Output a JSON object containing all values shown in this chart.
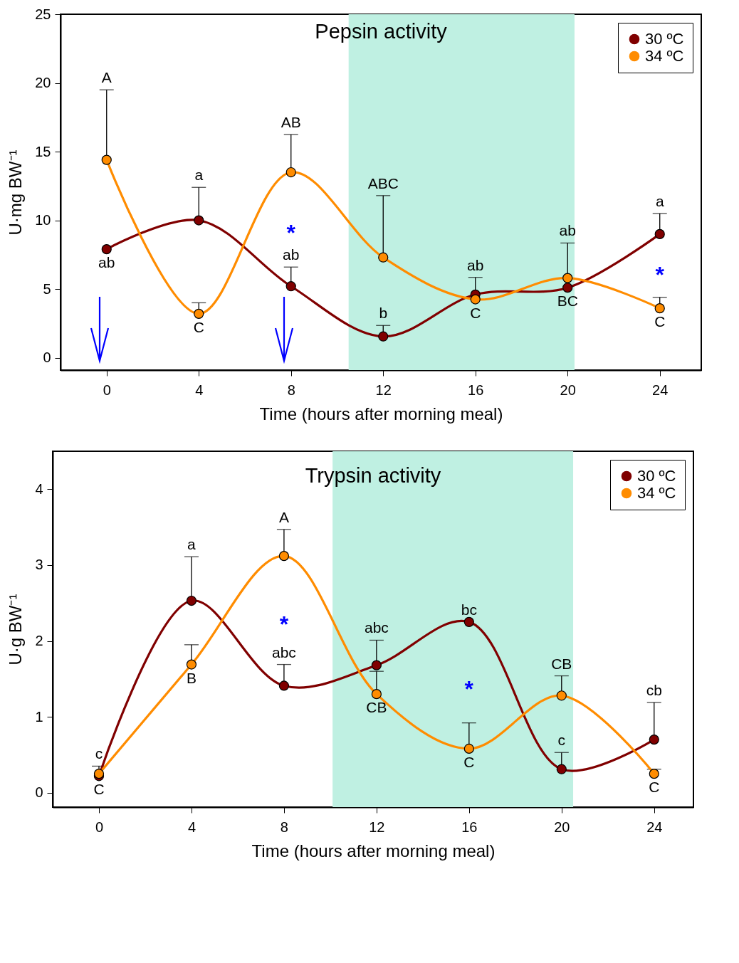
{
  "chart_data": [
    {
      "type": "line",
      "title": "Pepsin activity",
      "xlabel": "Time (hours after morning meal)",
      "ylabel": "U·mg BW⁻¹",
      "x": [
        0,
        4,
        8,
        12,
        16,
        20,
        24
      ],
      "xlim": [
        -2,
        25.8
      ],
      "xticks": [
        0,
        4,
        8,
        12,
        16,
        20,
        24
      ],
      "ylim": [
        -0.9,
        25
      ],
      "yticks": [
        0,
        5,
        10,
        15,
        20,
        25
      ],
      "grid": false,
      "legend": "top right",
      "marker": "circle",
      "line_style": "solid",
      "series": [
        {
          "name": "30 ºC",
          "color": "#800000",
          "values": [
            7.9,
            10.0,
            5.2,
            1.55,
            4.6,
            5.1,
            9.0
          ],
          "errors": [
            null,
            [
              10.0,
              12.4
            ],
            [
              5.2,
              6.6
            ],
            [
              1.55,
              2.35
            ],
            [
              4.6,
              5.85
            ],
            null,
            [
              9.0,
              10.5
            ]
          ]
        },
        {
          "name": "34 ºC",
          "color": "#ff8c00",
          "values": [
            14.4,
            3.2,
            13.5,
            7.3,
            4.25,
            5.8,
            3.6
          ],
          "errors": [
            [
              14.4,
              19.5
            ],
            [
              3.2,
              4.0
            ],
            [
              13.5,
              16.25
            ],
            [
              7.3,
              11.8
            ],
            null,
            [
              5.8,
              8.35
            ],
            [
              3.6,
              4.4
            ]
          ]
        }
      ],
      "bands": [
        {
          "axis": "x",
          "from": 10.5,
          "to": 20.3,
          "color": "#bff0e2"
        }
      ],
      "annotations": [
        {
          "text": "A",
          "x": 0,
          "y": 19.5
        },
        {
          "text": "ab",
          "x": 0,
          "y": 7.9
        },
        {
          "text": "a",
          "x": 4,
          "y": 12.4
        },
        {
          "text": "C",
          "x": 4,
          "y": 3.2
        },
        {
          "text": "AB",
          "x": 8,
          "y": 16.25
        },
        "*",
        {
          "text": "ab",
          "x": 8,
          "y": 6.6
        },
        {
          "text": "ABC",
          "x": 12,
          "y": 11.8
        },
        {
          "text": "b",
          "x": 12,
          "y": 2.35
        },
        {
          "text": "ab",
          "x": 16,
          "y": 5.85
        },
        {
          "text": "C",
          "x": 16,
          "y": 4.25
        },
        {
          "text": "ab",
          "x": 20,
          "y": 8.35
        },
        {
          "text": "BC",
          "x": 20,
          "y": 5.1
        },
        {
          "text": "a",
          "x": 24,
          "y": 10.5
        },
        "*",
        {
          "text": "C",
          "x": 24,
          "y": 3.6
        }
      ]
    },
    {
      "type": "line",
      "title": "Trypsin activity",
      "xlabel": "Time (hours after morning meal)",
      "ylabel": "U·g BW⁻¹",
      "x": [
        0,
        4,
        8,
        12,
        16,
        20,
        24
      ],
      "xlim": [
        -2,
        25.7
      ],
      "xticks": [
        0,
        4,
        8,
        12,
        16,
        20,
        24
      ],
      "ylim": [
        -0.19,
        4.5
      ],
      "yticks": [
        0,
        1,
        2,
        3,
        4
      ],
      "grid": false,
      "legend": "top right",
      "marker": "circle",
      "line_style": "solid",
      "series": [
        {
          "name": "30 ºC",
          "color": "#800000",
          "values": [
            0.22,
            2.53,
            1.41,
            1.68,
            2.25,
            0.31,
            0.7
          ],
          "errors": [
            [
              0.22,
              0.35
            ],
            [
              2.53,
              3.11
            ],
            [
              1.41,
              1.69
            ],
            [
              1.68,
              2.01
            ],
            null,
            [
              0.31,
              0.53
            ],
            [
              0.7,
              1.19
            ]
          ]
        },
        {
          "name": "34 ºC",
          "color": "#ff8c00",
          "values": [
            0.25,
            1.69,
            3.12,
            1.3,
            0.58,
            1.28,
            0.25
          ],
          "errors": [
            null,
            [
              1.69,
              1.95
            ],
            [
              3.12,
              3.47
            ],
            [
              1.3,
              1.6
            ],
            [
              0.58,
              0.92
            ],
            [
              1.28,
              1.54
            ],
            [
              0.25,
              0.31
            ]
          ]
        }
      ],
      "bands": [
        {
          "axis": "x",
          "from": 10.1,
          "to": 20.5,
          "color": "#bff0e2"
        }
      ],
      "annotations": [
        {
          "text": "c",
          "x": 0,
          "y": 0.35
        },
        {
          "text": "C",
          "x": 0,
          "y": 0.22
        },
        {
          "text": "a",
          "x": 4,
          "y": 3.11
        },
        {
          "text": "B",
          "x": 4,
          "y": 1.69
        },
        {
          "text": "A",
          "x": 8,
          "y": 3.47
        },
        "*",
        {
          "text": "abc",
          "x": 8,
          "y": 1.69
        },
        {
          "text": "abc",
          "x": 12,
          "y": 2.01
        },
        {
          "text": "CB",
          "x": 12,
          "y": 1.3
        },
        {
          "text": "bc",
          "x": 16,
          "y": 2.25
        },
        "*",
        {
          "text": "C",
          "x": 16,
          "y": 0.58
        },
        {
          "text": "CB",
          "x": 20,
          "y": 1.54
        },
        {
          "text": "c",
          "x": 20,
          "y": 0.53
        },
        {
          "text": "cb",
          "x": 24,
          "y": 1.19
        },
        {
          "text": "C",
          "x": 24,
          "y": 0.25
        }
      ]
    }
  ]
}
